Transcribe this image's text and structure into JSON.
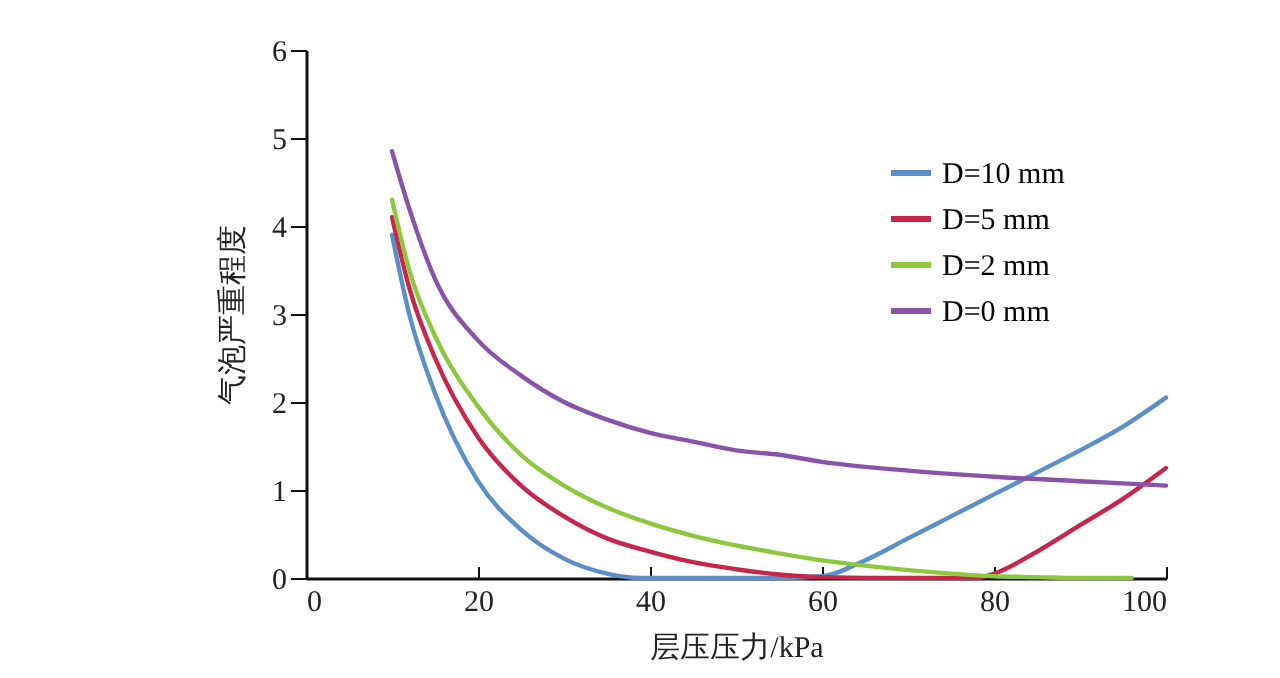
{
  "chart_data": {
    "type": "line",
    "xlabel": "层压压力/kPa",
    "ylabel": "气泡严重程度",
    "xlim": [
      0,
      100
    ],
    "xticks": [
      0,
      20,
      40,
      60,
      80,
      100
    ],
    "ylim": [
      0,
      6
    ],
    "yticks": [
      0,
      1,
      2,
      3,
      4,
      5,
      6
    ],
    "grid": false,
    "legend": "top right",
    "marker": "none",
    "line_style": "solid",
    "series": [
      {
        "name": "D=10 mm",
        "color": "#5b8fc7",
        "x": [
          10,
          12,
          15,
          20,
          25,
          30,
          35,
          39,
          45,
          55,
          60,
          65,
          70,
          75,
          80,
          85,
          90,
          95,
          100
        ],
        "values": [
          3.9,
          3.0,
          2.1,
          1.1,
          0.55,
          0.22,
          0.05,
          0,
          0,
          0,
          0.02,
          0.2,
          0.45,
          0.7,
          0.95,
          1.2,
          1.45,
          1.72,
          2.05
        ]
      },
      {
        "name": "D=5 mm",
        "color": "#c8254a",
        "x": [
          10,
          12,
          15,
          20,
          25,
          30,
          35,
          40,
          45,
          50,
          55,
          60,
          70,
          78,
          80,
          85,
          90,
          95,
          100
        ],
        "values": [
          4.1,
          3.3,
          2.5,
          1.6,
          1.05,
          0.7,
          0.45,
          0.3,
          0.18,
          0.1,
          0.04,
          0.01,
          0,
          0,
          0.05,
          0.3,
          0.6,
          0.9,
          1.25
        ]
      },
      {
        "name": "D=2 mm",
        "color": "#8cc83c",
        "x": [
          10,
          12,
          15,
          20,
          25,
          30,
          35,
          40,
          45,
          50,
          55,
          60,
          65,
          70,
          75,
          80,
          85,
          90,
          96
        ],
        "values": [
          4.3,
          3.5,
          2.75,
          1.95,
          1.4,
          1.05,
          0.8,
          0.62,
          0.48,
          0.37,
          0.28,
          0.2,
          0.14,
          0.09,
          0.05,
          0.02,
          0.01,
          0,
          0
        ]
      },
      {
        "name": "D=0 mm",
        "color": "#8a52a8",
        "x": [
          10,
          12,
          15,
          20,
          25,
          30,
          35,
          40,
          45,
          50,
          55,
          60,
          70,
          80,
          90,
          100
        ],
        "values": [
          4.85,
          4.2,
          3.4,
          2.7,
          2.3,
          2.0,
          1.8,
          1.65,
          1.55,
          1.45,
          1.4,
          1.32,
          1.22,
          1.15,
          1.1,
          1.05
        ]
      }
    ]
  }
}
